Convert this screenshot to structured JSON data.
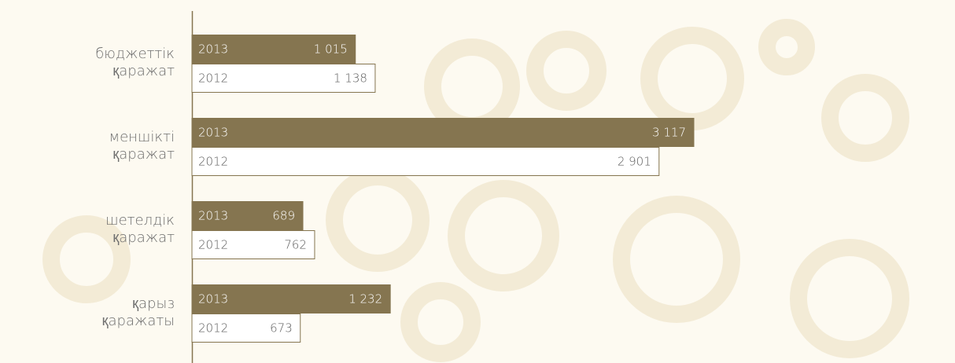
{
  "chart_data": {
    "type": "hbar",
    "categories": [
      "бюджеттік қаражат",
      "меншікті қаражат",
      "шетелдік қаражат",
      "қарыз қаражаты"
    ],
    "series": [
      {
        "name": "2013",
        "color": "#857550",
        "values": [
          1015,
          3117,
          689,
          1232
        ],
        "value_labels": [
          "1 015",
          "3 117",
          "689",
          "1 232"
        ]
      },
      {
        "name": "2012",
        "color": "#ffffff",
        "values": [
          1138,
          2901,
          762,
          673
        ],
        "value_labels": [
          "1 138",
          "2 901",
          "762",
          "673"
        ]
      }
    ],
    "bar_edge_color": "#857550"
  }
}
